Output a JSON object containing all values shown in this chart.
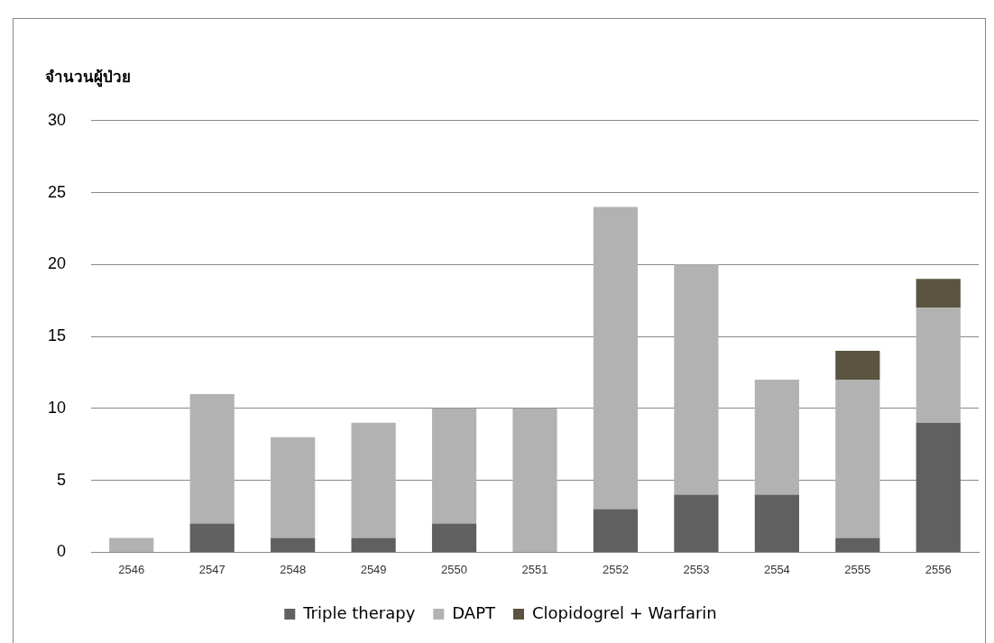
{
  "chart_data": {
    "type": "bar",
    "ylabel": "จำนวนผู้ป่วย",
    "categories": [
      "2546",
      "2547",
      "2548",
      "2549",
      "2550",
      "2551",
      "2552",
      "2553",
      "2554",
      "2555",
      "2556"
    ],
    "stacked": true,
    "series": [
      {
        "name": "Triple therapy",
        "color": "#606060",
        "values": [
          0,
          2,
          1,
          1,
          2,
          0,
          3,
          4,
          4,
          1,
          9
        ]
      },
      {
        "name": "DAPT",
        "color": "#b2b2b2",
        "values": [
          1,
          9,
          7,
          8,
          8,
          10,
          21,
          16,
          8,
          11,
          8
        ]
      },
      {
        "name": "Clopidogrel + Warfarin",
        "color": "#5a5440",
        "values": [
          0,
          0,
          0,
          0,
          0,
          0,
          0,
          0,
          0,
          2,
          2
        ]
      }
    ],
    "ylim": [
      0,
      30
    ],
    "yticks": [
      0,
      5,
      10,
      15,
      20,
      25,
      30
    ],
    "grid": "y",
    "legend": "bottom"
  }
}
